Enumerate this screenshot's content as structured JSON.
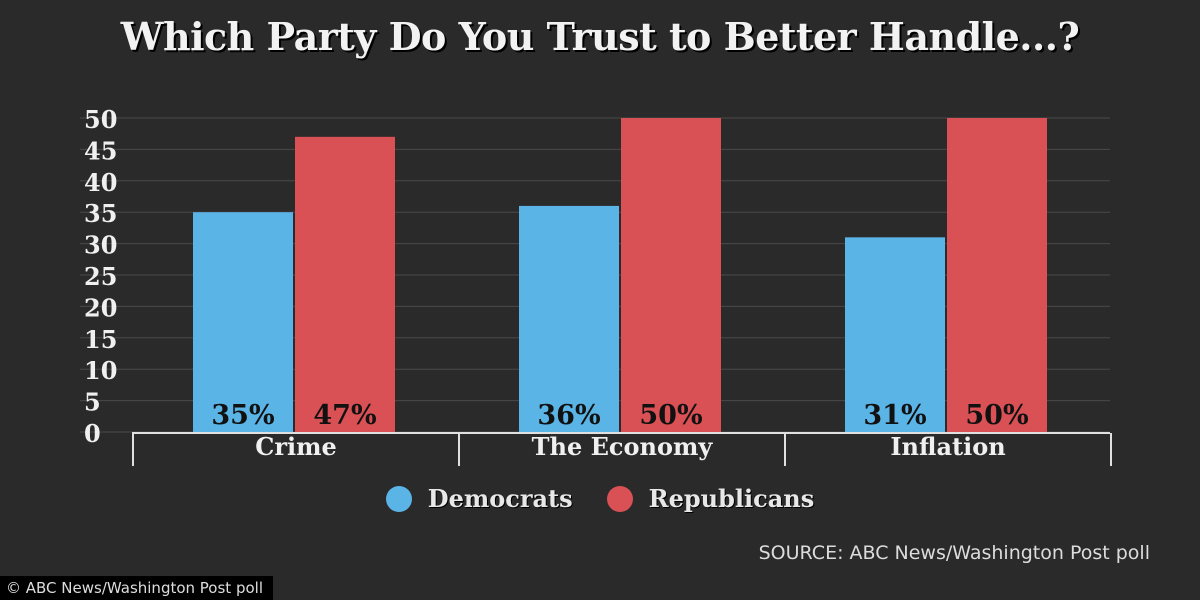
{
  "chart_data": {
    "type": "bar",
    "title": "Which Party Do You Trust to Better Handle...?",
    "categories": [
      "Crime",
      "The Economy",
      "Inflation"
    ],
    "series": [
      {
        "name": "Democrats",
        "color": "#5ab4e6",
        "values": [
          35,
          36,
          31
        ],
        "labels": [
          "35%",
          "36%",
          "31%"
        ]
      },
      {
        "name": "Republicans",
        "color": "#d95055",
        "values": [
          47,
          50,
          50
        ],
        "labels": [
          "47%",
          "50%",
          "50%"
        ]
      }
    ],
    "y_ticks": [
      "0",
      "5",
      "10",
      "15",
      "20",
      "25",
      "30",
      "35",
      "40",
      "45",
      "50"
    ],
    "ylim": [
      0,
      52.5
    ],
    "grid": true,
    "legend_position": "bottom-center"
  },
  "source": "SOURCE: ABC News/Washington Post poll",
  "credit": "© ABC News/Washington Post poll"
}
